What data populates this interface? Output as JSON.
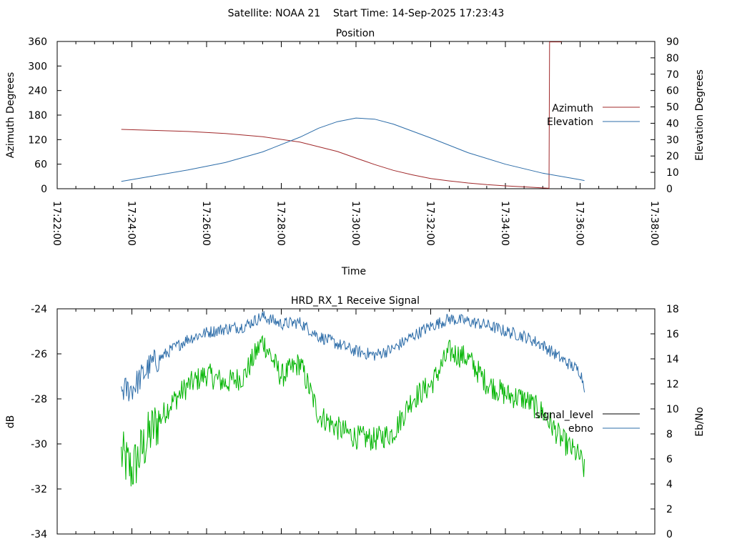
{
  "header": {
    "text": "Satellite: NOAA 21    Start Time: 14-Sep-2025 17:23:43"
  },
  "colors": {
    "azimuth": "#a0282a",
    "elevation": "#2c6ca8",
    "signal_level": "#000000",
    "ebno_line": "#2c6ca8",
    "green": "#00b400"
  },
  "chart_data": [
    {
      "id": "position",
      "type": "line",
      "title": "Position",
      "xlabel": "Time",
      "ylabel": "Azimuth Degrees",
      "y2label": "Elevation Degrees",
      "xlim": [
        "17:22:00",
        "17:38:00"
      ],
      "x_ticks": [
        "17:22:00",
        "17:24:00",
        "17:26:00",
        "17:28:00",
        "17:30:00",
        "17:32:00",
        "17:34:00",
        "17:36:00",
        "17:38:00"
      ],
      "ylim": [
        0,
        360
      ],
      "y_ticks": [
        0,
        60,
        120,
        180,
        240,
        300,
        360
      ],
      "y2lim": [
        0,
        90
      ],
      "y2_ticks": [
        0,
        10,
        20,
        30,
        40,
        50,
        60,
        70,
        80,
        90
      ],
      "legend_position": "right",
      "series": [
        {
          "name": "Azimuth",
          "axis": "left",
          "x": [
            "17:23:43",
            "17:24:30",
            "17:25:30",
            "17:26:30",
            "17:27:30",
            "17:28:30",
            "17:29:30",
            "17:30:00",
            "17:30:30",
            "17:31:00",
            "17:31:30",
            "17:32:00",
            "17:32:30",
            "17:33:00",
            "17:33:30",
            "17:34:00",
            "17:34:30",
            "17:35:00",
            "17:35:10",
            "17:35:11",
            "17:35:30"
          ],
          "y": [
            145,
            143,
            140,
            135,
            127,
            114,
            91,
            75,
            59,
            45,
            34,
            25,
            19,
            14,
            10,
            7,
            4.5,
            2,
            1,
            359,
            359
          ]
        },
        {
          "name": "Elevation",
          "axis": "right",
          "x": [
            "17:23:43",
            "17:24:30",
            "17:25:30",
            "17:26:30",
            "17:27:30",
            "17:28:30",
            "17:29:00",
            "17:29:30",
            "17:30:00",
            "17:30:30",
            "17:31:00",
            "17:32:00",
            "17:33:00",
            "17:34:00",
            "17:35:00",
            "17:36:00",
            "17:36:07"
          ],
          "y": [
            4.5,
            7.5,
            11.5,
            16,
            22.5,
            31.5,
            37,
            41,
            43.2,
            42.5,
            39.5,
            31,
            22,
            15,
            9.5,
            5.5,
            5
          ]
        }
      ]
    },
    {
      "id": "receive-signal",
      "type": "line",
      "title": "HRD_RX_1 Receive Signal",
      "xlabel": "",
      "ylabel": "dB",
      "y2label": "Eb/No",
      "xlim": [
        "17:22:00",
        "17:38:00"
      ],
      "ylim": [
        -34,
        -24
      ],
      "y_ticks": [
        -34,
        -32,
        -30,
        -28,
        -26,
        -24
      ],
      "y2lim": [
        0,
        18
      ],
      "y2_ticks": [
        0,
        2,
        4,
        6,
        8,
        10,
        12,
        14,
        16,
        18
      ],
      "legend_position": "right",
      "series": [
        {
          "name": "signal_level",
          "axis": "left",
          "x": [
            "17:23:43",
            "17:24:00",
            "17:24:30",
            "17:25:00",
            "17:25:30",
            "17:26:00",
            "17:26:30",
            "17:27:00",
            "17:27:30",
            "17:28:00",
            "17:28:30",
            "17:29:00",
            "17:29:30",
            "17:30:00",
            "17:30:30",
            "17:31:00",
            "17:31:30",
            "17:32:00",
            "17:32:30",
            "17:33:00",
            "17:33:30",
            "17:34:00",
            "17:34:30",
            "17:35:00",
            "17:35:30",
            "17:36:00",
            "17:36:07"
          ],
          "y": [
            -30.5,
            -31.2,
            -29.5,
            -28.3,
            -27.4,
            -26.9,
            -27.3,
            -27.0,
            -25.4,
            -27.0,
            -26.4,
            -28.7,
            -29.3,
            -29.7,
            -29.8,
            -29.5,
            -28.0,
            -27.4,
            -25.9,
            -26.2,
            -27.3,
            -27.8,
            -28.0,
            -28.6,
            -29.8,
            -30.6,
            -31.2
          ]
        },
        {
          "name": "ebno",
          "axis": "right",
          "x": [
            "17:23:43",
            "17:24:00",
            "17:24:30",
            "17:25:00",
            "17:25:30",
            "17:26:00",
            "17:26:30",
            "17:27:00",
            "17:27:30",
            "17:28:00",
            "17:28:30",
            "17:29:00",
            "17:29:30",
            "17:30:00",
            "17:30:30",
            "17:31:00",
            "17:31:30",
            "17:32:00",
            "17:32:30",
            "17:33:00",
            "17:33:30",
            "17:34:00",
            "17:34:30",
            "17:35:00",
            "17:35:30",
            "17:36:00",
            "17:36:07"
          ],
          "y": [
            11.5,
            11.6,
            13.5,
            14.6,
            15.6,
            16.1,
            16.4,
            16.6,
            17.4,
            16.8,
            16.9,
            15.8,
            15.2,
            14.6,
            14.3,
            14.8,
            15.8,
            16.6,
            17.2,
            17.0,
            16.7,
            16.2,
            15.8,
            15.1,
            14.0,
            13.0,
            11.8
          ]
        }
      ]
    }
  ]
}
